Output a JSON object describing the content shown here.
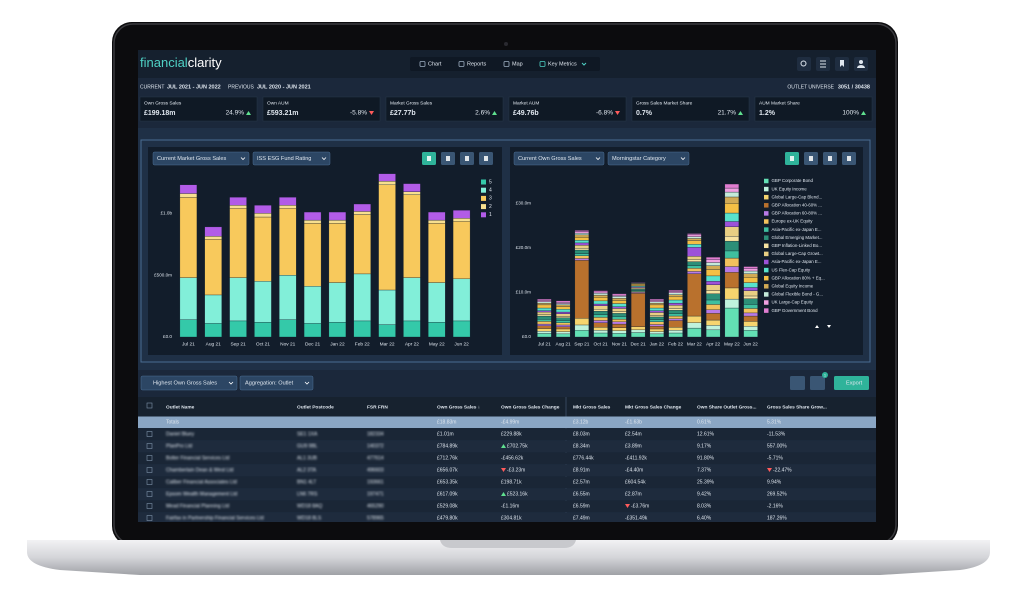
{
  "header": {
    "logo_a": "financial",
    "logo_b": "clarity",
    "nav": [
      "Chart",
      "Reports",
      "Map",
      "Key Metrics"
    ]
  },
  "period": {
    "current_label": "CURRENT",
    "current": "JUL 2021 - JUN 2022",
    "previous_label": "PREVIOUS",
    "previous": "JUL 2020 - JUN 2021",
    "universe_label": "OUTLET UNIVERSE",
    "universe": "3051 / 30438"
  },
  "kpis": [
    {
      "label": "Own Gross Sales",
      "value": "£199.18m",
      "change": "24.9%",
      "trend": "up"
    },
    {
      "label": "Own AUM",
      "value": "£593.21m",
      "change": "-5.8%",
      "trend": "down"
    },
    {
      "label": "Market Gross Sales",
      "value": "£27.77b",
      "change": "2.6%",
      "trend": "up"
    },
    {
      "label": "Market AUM",
      "value": "£49.76b",
      "change": "-6.8%",
      "trend": "down"
    },
    {
      "label": "Gross Sales Market Share",
      "value": "0.7%",
      "change": "21.7%",
      "trend": "up"
    },
    {
      "label": "AUM Market Share",
      "value": "1.2%",
      "change": "100%",
      "trend": "up"
    }
  ],
  "chart_data": [
    {
      "type": "bar",
      "stacked": true,
      "controls": [
        "Current Market Gross Sales",
        "ISS ESG Fund Rating"
      ],
      "categories": [
        "Jul 21",
        "Aug 21",
        "Sep 21",
        "Oct 21",
        "Nov 21",
        "Dec 21",
        "Jan 22",
        "Feb 22",
        "Mar 22",
        "Apr 22",
        "May 22",
        "Jun 22"
      ],
      "ylim": [
        0,
        1350
      ],
      "yticks": [
        {
          "value": 0,
          "label": "£0.0"
        },
        {
          "value": 500,
          "label": "£500.0m"
        },
        {
          "value": 1000,
          "label": "£1.0b"
        }
      ],
      "series": [
        {
          "name": "5",
          "color": "#34c9a9",
          "values": [
            140,
            110,
            130,
            120,
            140,
            110,
            120,
            130,
            100,
            130,
            120,
            130
          ]
        },
        {
          "name": "4",
          "color": "#82efd9",
          "values": [
            340,
            230,
            350,
            330,
            360,
            300,
            320,
            380,
            280,
            350,
            320,
            340
          ]
        },
        {
          "name": "3",
          "color": "#f8c95c",
          "values": [
            650,
            450,
            560,
            520,
            540,
            510,
            480,
            480,
            850,
            670,
            480,
            465
          ]
        },
        {
          "name": "2",
          "color": "#f7df8f",
          "values": [
            30,
            25,
            25,
            30,
            25,
            25,
            25,
            25,
            30,
            25,
            25,
            25
          ]
        },
        {
          "name": "1",
          "color": "#b25ce8",
          "values": [
            70,
            75,
            65,
            65,
            65,
            65,
            65,
            60,
            60,
            65,
            65,
            65
          ]
        }
      ]
    },
    {
      "type": "bar",
      "stacked": true,
      "controls": [
        "Current Own Gross Sales",
        "Morningstar Category"
      ],
      "categories": [
        "Jul 21",
        "Aug 21",
        "Sep 21",
        "Oct 21",
        "Nov 21",
        "Dec 21",
        "Jan 22",
        "Feb 22",
        "Mar 22",
        "Apr 22",
        "May 22",
        "Jun 22"
      ],
      "ylim": [
        0,
        37
      ],
      "yticks": [
        {
          "value": 0,
          "label": "£0.0"
        },
        {
          "value": 10,
          "label": "£10.0m"
        },
        {
          "value": 20,
          "label": "£20.0m"
        },
        {
          "value": 30,
          "label": "£30.0m"
        }
      ],
      "series": [
        {
          "name": "GBP Corporate Bond",
          "color": "#63e0b4",
          "values": [
            0.8,
            0.7,
            1.5,
            0.9,
            0.8,
            1.0,
            0.7,
            0.9,
            2.0,
            1.6,
            6.5,
            1.5
          ]
        },
        {
          "name": "UK Equity Income",
          "color": "#bff2dc",
          "values": [
            0.5,
            0.5,
            1.2,
            0.6,
            0.6,
            0.6,
            0.5,
            0.6,
            1.2,
            1.0,
            2.0,
            0.9
          ]
        },
        {
          "name": "Global Large-Cap Blend...",
          "color": "#f6d46e",
          "values": [
            0.6,
            0.6,
            1.5,
            0.7,
            0.7,
            0.7,
            0.6,
            0.7,
            1.5,
            1.2,
            2.5,
            1.1
          ]
        },
        {
          "name": "GBP Allocation 40-60% ...",
          "color": "#b9712d",
          "values": [
            0.6,
            0.5,
            13.0,
            1.0,
            0.8,
            7.5,
            0.6,
            1.5,
            9.5,
            1.5,
            3.5,
            1.2
          ]
        },
        {
          "name": "GBP Allocation 60-80% ...",
          "color": "#b87ae6",
          "values": [
            0.4,
            0.4,
            0.4,
            0.5,
            0.5,
            0.2,
            0.4,
            0.4,
            0.5,
            0.8,
            1.3,
            0.7
          ]
        },
        {
          "name": "Europe ex-UK Equity",
          "color": "#f2c15c",
          "values": [
            0.6,
            0.5,
            0.6,
            0.7,
            0.6,
            0.2,
            0.6,
            0.6,
            0.7,
            1.2,
            1.9,
            1.0
          ]
        },
        {
          "name": "Asia-Pacific ex-Japan E...",
          "color": "#3fbf9f",
          "values": [
            0.5,
            0.5,
            0.5,
            0.6,
            0.6,
            0.2,
            0.5,
            0.5,
            0.6,
            1.0,
            1.6,
            0.9
          ]
        },
        {
          "name": "Global Emerging Market...",
          "color": "#2c8f78",
          "values": [
            0.7,
            0.6,
            0.8,
            0.8,
            0.7,
            0.3,
            0.6,
            0.8,
            0.9,
            1.4,
            2.2,
            1.3
          ]
        },
        {
          "name": "GBP Inflation-Linked Bo...",
          "color": "#f7e3a0",
          "values": [
            0.3,
            0.3,
            0.4,
            0.4,
            0.4,
            0.1,
            0.3,
            0.4,
            0.4,
            0.7,
            1.1,
            0.6
          ]
        },
        {
          "name": "Global Large-Cap Growt...",
          "color": "#e8cf83",
          "values": [
            0.6,
            0.6,
            0.7,
            0.8,
            0.7,
            0.3,
            0.7,
            0.7,
            0.8,
            1.3,
            2.1,
            1.2
          ]
        },
        {
          "name": "Asia-Pacific ex-Japan E...",
          "color": "#9c52d9",
          "values": [
            0.3,
            0.4,
            0.5,
            0.4,
            0.4,
            0.2,
            0.4,
            0.5,
            2.0,
            0.8,
            1.2,
            0.7
          ]
        },
        {
          "name": "US Flex-Cap Equity",
          "color": "#58e2cc",
          "values": [
            0.6,
            0.6,
            0.6,
            0.7,
            0.7,
            0.2,
            0.6,
            0.7,
            0.7,
            1.2,
            1.9,
            1.1
          ]
        },
        {
          "name": "GBP Allocation 80% + Eq...",
          "color": "#f4bf45",
          "values": [
            0.7,
            0.6,
            0.7,
            0.8,
            0.7,
            0.3,
            0.7,
            0.7,
            0.8,
            1.4,
            2.2,
            1.2
          ]
        },
        {
          "name": "Global Equity Income",
          "color": "#d1aa55",
          "values": [
            0.4,
            0.4,
            0.5,
            0.5,
            0.5,
            0.2,
            0.4,
            0.5,
            0.5,
            0.9,
            1.4,
            0.8
          ]
        },
        {
          "name": "Global Flexible Bond - G...",
          "color": "#c4ead9",
          "values": [
            0.3,
            0.3,
            0.4,
            0.4,
            0.4,
            0.1,
            0.3,
            0.4,
            0.4,
            0.7,
            1.1,
            0.6
          ]
        },
        {
          "name": "UK Large-Cap Equity",
          "color": "#f0a0e0",
          "values": [
            0.3,
            0.3,
            0.3,
            0.3,
            0.3,
            0.1,
            0.3,
            0.3,
            0.4,
            0.6,
            0.9,
            0.5
          ]
        },
        {
          "name": "GBP Government Bond",
          "color": "#e07dd0",
          "values": [
            0.3,
            0.3,
            0.3,
            0.3,
            0.3,
            0.1,
            0.3,
            0.3,
            0.3,
            0.6,
            0.9,
            0.5
          ]
        }
      ]
    }
  ],
  "table": {
    "toolbar": {
      "sort": "Highest Own Gross Sales",
      "aggregation": "Aggregation: Outlet",
      "filter_badge": "1",
      "export": "Export"
    },
    "columns": [
      "Outlet Name",
      "Outlet Postcode",
      "FSR FRN",
      "Own Gross Sales ↓",
      "Own Gross Sales Change",
      "Mkt Gross Sales",
      "Mkt Gross Sales Change",
      "Own Share Outlet Gross...",
      "Gross Sales Share Grow..."
    ],
    "rows": [
      {
        "cells": [
          "Totals",
          null,
          null,
          "£18.83m",
          "-£4.99m",
          "£3.12b",
          "-£1.63b",
          "0.61%",
          "5.31%"
        ]
      },
      {
        "cells": [
          "Daniel Bluey",
          "SE1 1XA",
          "182334",
          "£1.01m",
          "£229.88k",
          "£8.03m",
          "£2.54m",
          "12.61%",
          "-11.53%"
        ]
      },
      {
        "cells": [
          "PlanPro Ltd",
          "GU9 9BL",
          "140372",
          "£784.89k",
          "£702.75k",
          "£8.34m",
          "£3.89m",
          "9.17%",
          "557.00%"
        ],
        "up": [
          4
        ]
      },
      {
        "cells": [
          "Bolter Financial Services Ltd",
          "AL1 3UB",
          "477614",
          "£712.76k",
          "-£456.62k",
          "£776.44k",
          "-£411.92k",
          "91.80%",
          "-5.71%"
        ]
      },
      {
        "cells": [
          "Chamberlain Dean & West Ltd",
          "AL2 3TA",
          "496603",
          "£656.07k",
          "-£3.23m",
          "£8.91m",
          "-£4.40m",
          "7.37%",
          "-22.47%"
        ],
        "down": [
          4,
          8
        ]
      },
      {
        "cells": [
          "Caliber Financial Associates Ltd",
          "BN1 4LT",
          "193661",
          "£653.35k",
          "£198.71k",
          "£2.57m",
          "£604.54k",
          "25.39%",
          "9.94%"
        ]
      },
      {
        "cells": [
          "Epsom Wealth Management Ltd",
          "LN6 7RS",
          "197471",
          "£617.09k",
          "£523.16k",
          "£6.55m",
          "£2.87m",
          "9.42%",
          "269.52%"
        ],
        "up": [
          4
        ]
      },
      {
        "cells": [
          "Mead Financial Planning Ltd",
          "WD18 8AQ",
          "465290",
          "£529.08k",
          "-£1.16m",
          "£6.59m",
          "-£3.76m",
          "8.03%",
          "-2.16%"
        ],
        "down": [
          6
        ]
      },
      {
        "cells": [
          "Fairfax in Partnership Financial Services Ltd",
          "WD18 8LS",
          "578965",
          "£479.80k",
          "£304.81k",
          "£7.49m",
          "-£351.49k",
          "6.40%",
          "187.26%"
        ]
      }
    ]
  }
}
